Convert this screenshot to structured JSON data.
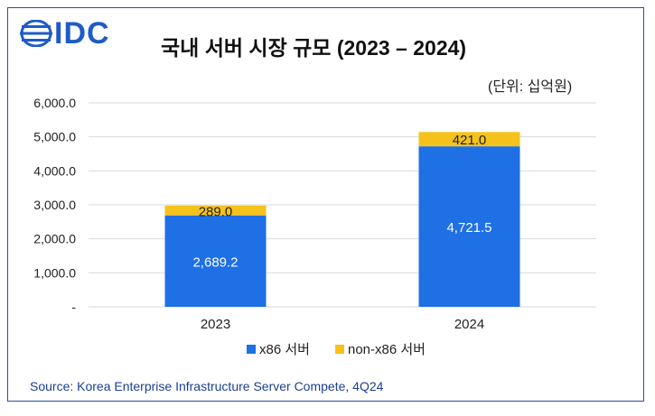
{
  "logo": {
    "text": "IDC"
  },
  "title": "국내 서버 시장 규모 (2023 – 2024)",
  "unit": "(단위: 십억원)",
  "source": "Source: Korea Enterprise Infrastructure Server Compete, 4Q24",
  "colors": {
    "x86": "#1f6fe5",
    "non_x86": "#f5c21b",
    "grid": "#d9d9d9",
    "accent": "#1f5bc6"
  },
  "chart_data": {
    "type": "bar",
    "stacked": true,
    "categories": [
      "2023",
      "2024"
    ],
    "series": [
      {
        "name": "x86 서버",
        "values": [
          2689.2,
          4721.5
        ],
        "labels": [
          "2,689.2",
          "4,721.5"
        ]
      },
      {
        "name": "non-x86 서버",
        "values": [
          289.0,
          421.0
        ],
        "labels": [
          "289.0",
          "421.0"
        ]
      }
    ],
    "y_ticks": [
      0,
      1000,
      2000,
      3000,
      4000,
      5000,
      6000
    ],
    "y_tick_labels": [
      "-",
      "1,000.0",
      "2,000.0",
      "3,000.0",
      "4,000.0",
      "5,000.0",
      "6,000.0"
    ],
    "ylim": [
      0,
      6000
    ],
    "grid": true,
    "legend": "bottom"
  }
}
